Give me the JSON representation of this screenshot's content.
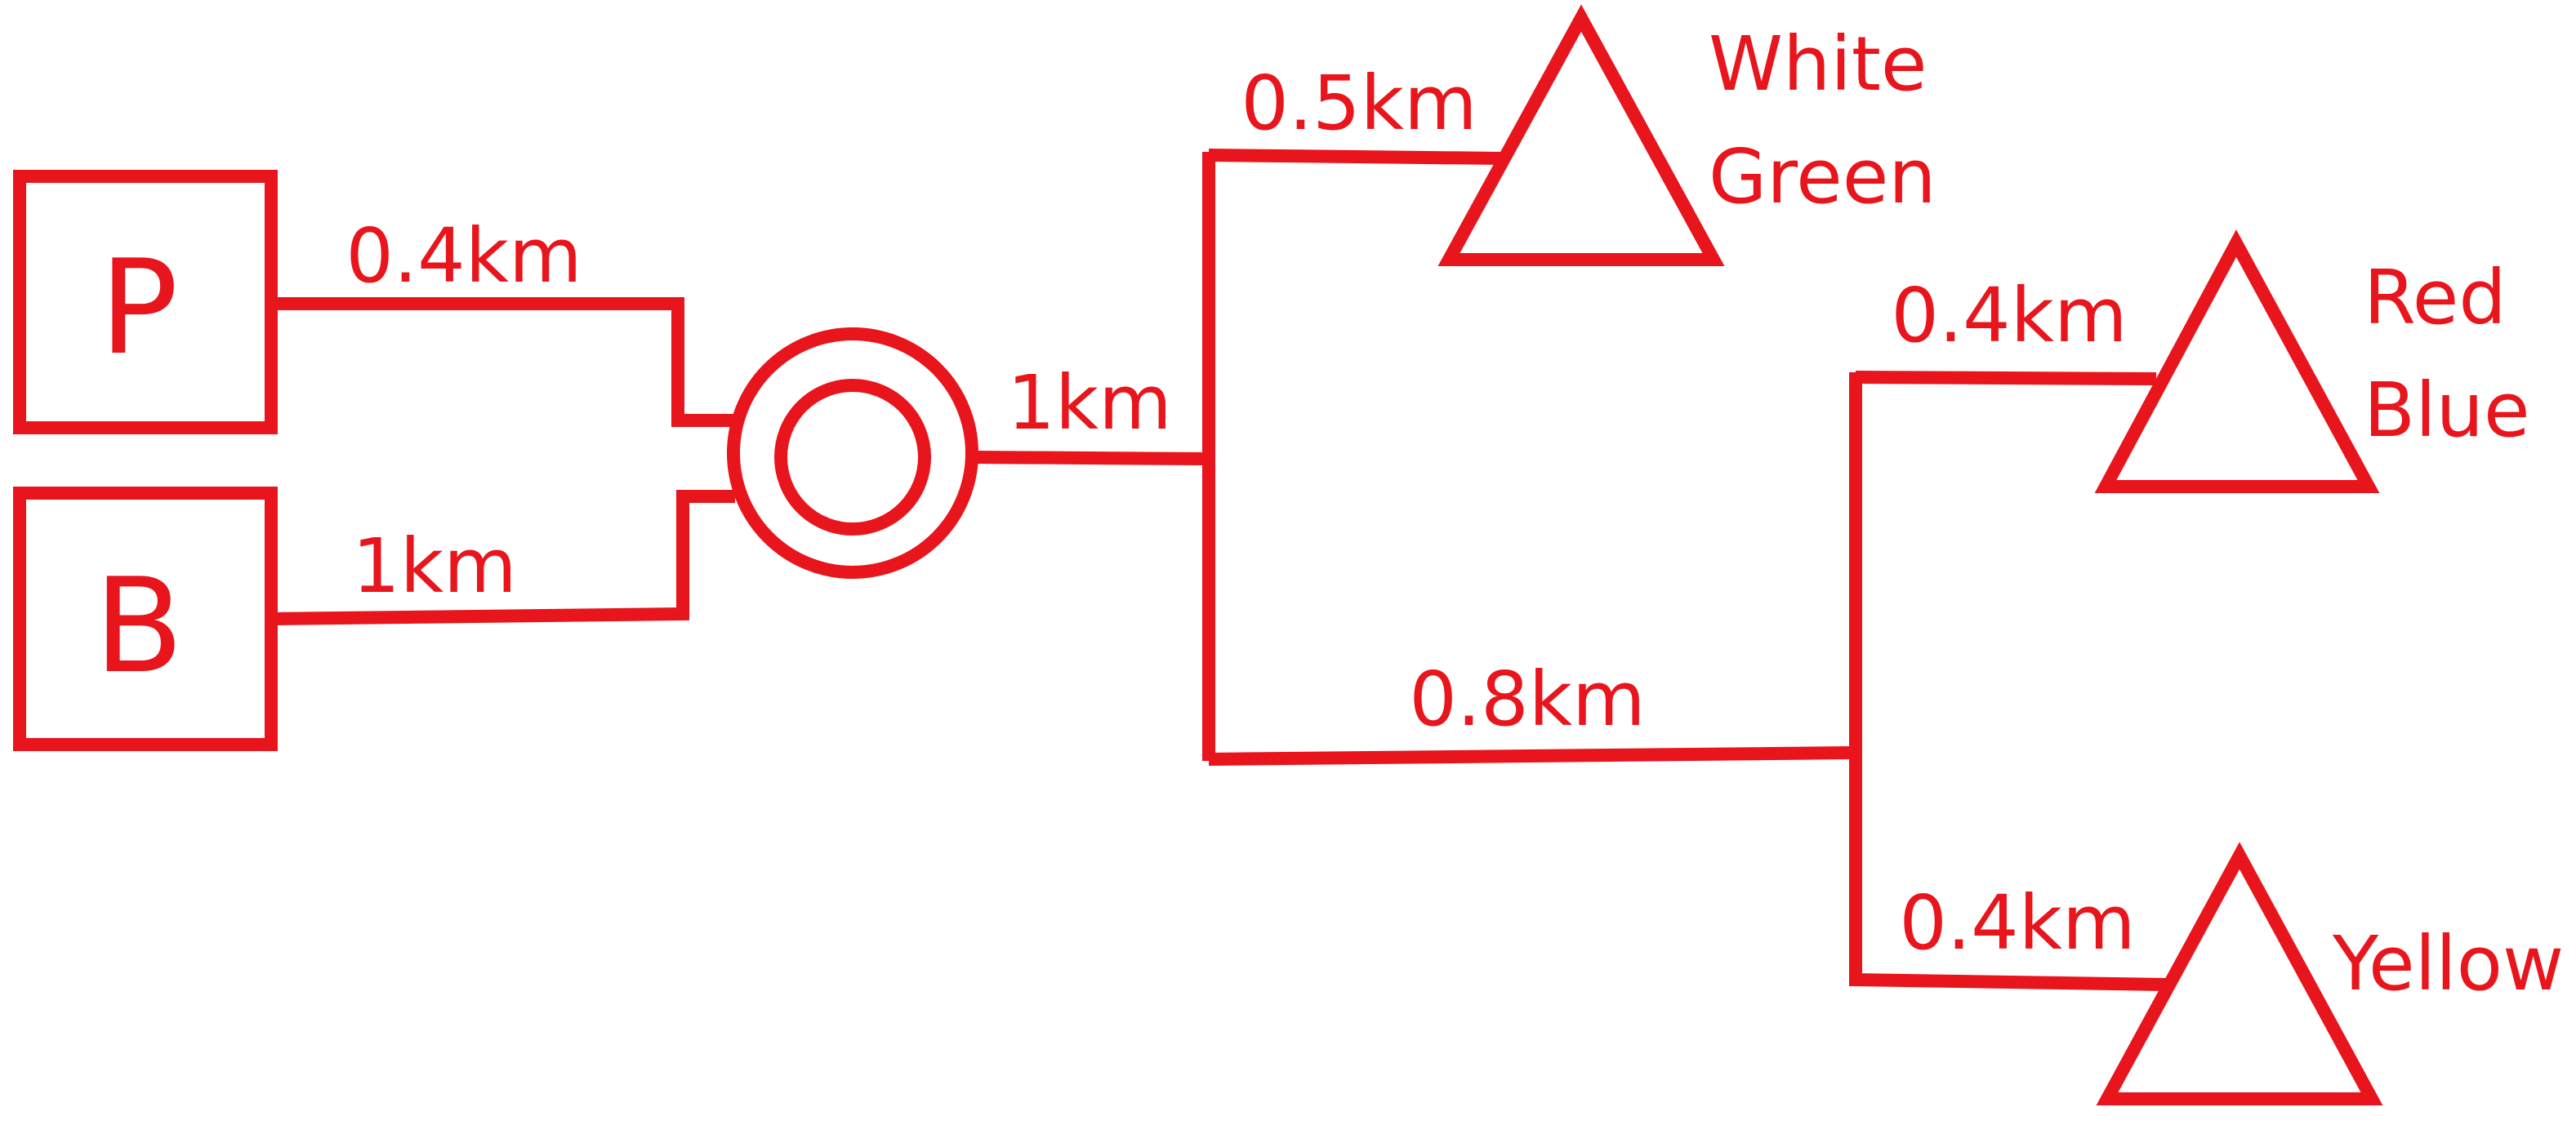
{
  "colors": {
    "line": "#e8151c",
    "background": "#ffffff"
  },
  "sources": [
    {
      "label": "P"
    },
    {
      "label": "B"
    }
  ],
  "distances": {
    "p_to_hub": "0.4km",
    "b_to_hub": "1km",
    "hub_to_junction": "1km",
    "junction_to_white_green": "0.5km",
    "junction_to_second_junction": "0.8km",
    "second_junction_to_red_blue": "0.4km",
    "second_junction_to_yellow": "0.4km"
  },
  "destinations": {
    "white_green": [
      "White",
      "Green"
    ],
    "red_blue": [
      "Red",
      "Blue"
    ],
    "yellow": [
      "Yellow"
    ]
  }
}
